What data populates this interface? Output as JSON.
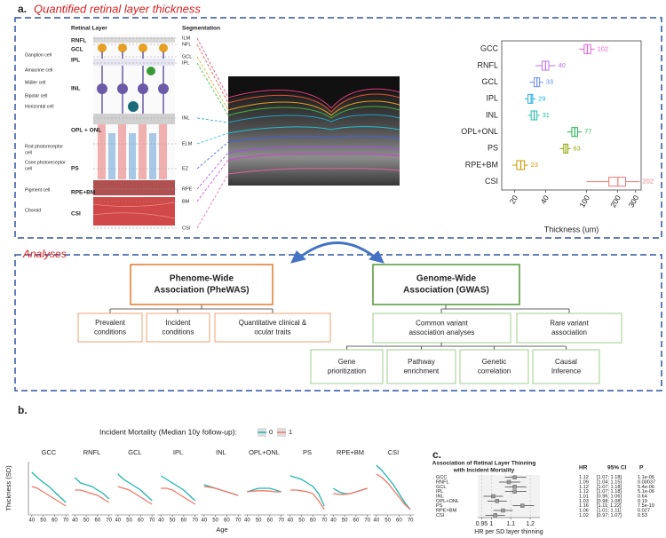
{
  "panel_a": {
    "label": "a.",
    "title": "Quantified retinal layer thickness",
    "diagram": {
      "layer_header": "Retinal Layer",
      "seg_header": "Segmentation",
      "layers": [
        "RNFL",
        "GCL",
        "IPL",
        "INL",
        "OPL + ONL",
        "PS",
        "RPE+BM",
        "CSI"
      ],
      "cells": [
        "Ganglion cell",
        "Amacrine cell",
        "Müller cell",
        "Bipolar cell",
        "Horizontal cell",
        "Rod photoreceptor",
        "cell",
        "Cone photoreceptor",
        "cell",
        "Pigment cell",
        "Choroid"
      ],
      "segmentation": [
        "ILM",
        "NFL",
        "GCL",
        "IPL",
        "INL",
        "ELM",
        "EZ",
        "RPE",
        "BM",
        "CSI"
      ]
    },
    "boxplot": {
      "type": "box",
      "categories": [
        "GCC",
        "RNFL",
        "GCL",
        "IPL",
        "INL",
        "OPL+ONL",
        "PS",
        "RPE+BM",
        "CSI"
      ],
      "median": [
        102,
        40,
        33,
        29,
        31,
        77,
        63,
        23,
        202
      ],
      "q1": [
        95,
        37,
        31,
        27,
        29,
        72,
        60,
        21,
        165
      ],
      "q3": [
        110,
        43,
        35,
        30,
        33,
        82,
        66,
        25,
        240
      ],
      "whisker_low": [
        85,
        32,
        28,
        25,
        27,
        65,
        55,
        19,
        100
      ],
      "whisker_high": [
        120,
        50,
        38,
        32,
        35,
        90,
        70,
        27,
        330
      ],
      "colors": [
        "#e060d8",
        "#c070f0",
        "#6b8cff",
        "#20b0e0",
        "#20c0a8",
        "#20b850",
        "#8fa800",
        "#c89b00",
        "#f07878"
      ],
      "xlim": [
        15,
        340
      ],
      "xticks": [
        20,
        40,
        100,
        200,
        300
      ],
      "log_x": true,
      "xlabel": "Thickness (um)"
    }
  },
  "analyses": {
    "title": "Analyses",
    "phewas": {
      "title_lines": [
        "Phenome-Wide",
        "Association (PheWAS)"
      ],
      "children": [
        [
          "Prevalent",
          "conditions"
        ],
        [
          "Incident",
          "conditions"
        ],
        [
          "Quantitative clinical &",
          "ocular traits"
        ]
      ]
    },
    "gwas": {
      "title_lines": [
        "Genome-Wide",
        "Association (GWAS)"
      ],
      "children": [
        [
          "Common variant",
          "association analyses"
        ],
        [
          "Rare variant",
          "association"
        ]
      ],
      "grandchildren": [
        [
          "Gene",
          "prioritization"
        ],
        [
          "Pathway",
          "enrichment"
        ],
        [
          "Genetic",
          "correlation"
        ],
        [
          "Causal",
          "Inference"
        ]
      ]
    }
  },
  "panel_b": {
    "label": "b.",
    "legend_title": "Incident Mortality (Median 10y follow-up):",
    "series": [
      {
        "name": "0",
        "color": "#20b5b0"
      },
      {
        "name": "1",
        "color": "#f07868"
      }
    ],
    "ages": [
      40,
      45,
      50,
      55,
      60,
      65,
      70
    ],
    "xlim": [
      37,
      73
    ],
    "xticks": [
      40,
      50,
      60,
      70
    ],
    "ylim": [
      -0.7,
      0.8
    ],
    "xlabel": "Age",
    "ylabel": "Thickness (SD)",
    "facets": [
      {
        "title": "GCC",
        "values": [
          [
            0.5,
            0.35,
            0.22,
            0.1,
            -0.05,
            -0.2,
            -0.35
          ],
          [
            0.1,
            0.05,
            -0.05,
            -0.15,
            -0.25,
            -0.35,
            -0.45
          ]
        ]
      },
      {
        "title": "RNFL",
        "values": [
          [
            0.35,
            0.2,
            0.15,
            0.1,
            0,
            -0.1,
            -0.25
          ],
          [
            0,
            0,
            -0.05,
            -0.1,
            -0.15,
            -0.25,
            -0.35
          ]
        ]
      },
      {
        "title": "GCL",
        "values": [
          [
            0.45,
            0.3,
            0.2,
            0.1,
            0,
            -0.15,
            -0.3
          ],
          [
            0.1,
            0.05,
            0,
            -0.1,
            -0.2,
            -0.3,
            -0.4
          ]
        ]
      },
      {
        "title": "IPL",
        "values": [
          [
            0.4,
            0.3,
            0.2,
            0.1,
            0,
            -0.15,
            -0.3
          ],
          [
            0.05,
            0.05,
            0,
            -0.1,
            -0.2,
            -0.3,
            -0.4
          ]
        ]
      },
      {
        "title": "INL",
        "values": [
          [
            0.15,
            0.1,
            0.05,
            0,
            -0.05,
            -0.1,
            -0.15
          ],
          [
            0.1,
            0.08,
            0.05,
            0,
            -0.05,
            -0.1,
            -0.15
          ]
        ]
      },
      {
        "title": "OPL+ONL",
        "values": [
          [
            -0.05,
            0,
            0.05,
            0.05,
            0.05,
            0,
            -0.05
          ],
          [
            -0.05,
            -0.03,
            -0.02,
            -0.02,
            -0.03,
            -0.05,
            -0.05
          ]
        ]
      },
      {
        "title": "PS",
        "values": [
          [
            0.4,
            0.35,
            0.3,
            0.2,
            0.1,
            -0.1,
            -0.45
          ],
          [
            0,
            0,
            -0.02,
            -0.05,
            -0.1,
            -0.3,
            -0.55
          ]
        ]
      },
      {
        "title": "RPE+BM",
        "values": [
          [
            0.05,
            -0.05,
            -0.1,
            -0.1,
            -0.05,
            0,
            0.05
          ],
          [
            -0.1,
            -0.12,
            -0.12,
            -0.1,
            -0.05,
            0,
            0.05
          ]
        ]
      },
      {
        "title": "CSI",
        "values": [
          [
            0.7,
            0.55,
            0.35,
            0.15,
            -0.1,
            -0.35,
            -0.55
          ],
          [
            0.45,
            0.35,
            0.2,
            0,
            -0.2,
            -0.4,
            -0.55
          ]
        ]
      }
    ]
  },
  "panel_c": {
    "label": "c.",
    "title_lines": [
      "Association of Retinal Layer Thinning",
      "with Incident Mortality"
    ],
    "headers": [
      "HR",
      "95% CI",
      "P"
    ],
    "rows": [
      {
        "layer": "GCC",
        "hr": 1.12,
        "ci_low": 1.07,
        "ci_high": 1.18,
        "ci_label": "[1.07; 1.18]",
        "p": "1.1e-06"
      },
      {
        "layer": "RNFL",
        "hr": 1.09,
        "ci_low": 1.04,
        "ci_high": 1.15,
        "ci_label": "[1.04; 1.15]",
        "p": "0.00037"
      },
      {
        "layer": "GCL",
        "hr": 1.12,
        "ci_low": 1.07,
        "ci_high": 1.18,
        "ci_label": "[1.07; 1.18]",
        "p": "5.4e-06"
      },
      {
        "layer": "IPL",
        "hr": 1.12,
        "ci_low": 1.07,
        "ci_high": 1.18,
        "ci_label": "[1.07; 1.18]",
        "p": "5.1e-06"
      },
      {
        "layer": "INL",
        "hr": 1.01,
        "ci_low": 0.96,
        "ci_high": 1.06,
        "ci_label": "[0.96; 1.06]",
        "p": "0.64"
      },
      {
        "layer": "OPL+ONL",
        "hr": 1.03,
        "ci_low": 0.98,
        "ci_high": 1.08,
        "ci_label": "[0.98; 1.08]",
        "p": "0.19"
      },
      {
        "layer": "PS",
        "hr": 1.16,
        "ci_low": 1.11,
        "ci_high": 1.22,
        "ci_label": "[1.11; 1.22]",
        "p": "7.5e-10"
      },
      {
        "layer": "RPE+BM",
        "hr": 1.06,
        "ci_low": 1.01,
        "ci_high": 1.11,
        "ci_label": "[1.01; 1.11]",
        "p": "0.027"
      },
      {
        "layer": "CSI",
        "hr": 1.02,
        "ci_low": 0.97,
        "ci_high": 1.07,
        "ci_label": "[0.97; 1.07]",
        "p": "0.53"
      }
    ],
    "xlim": [
      0.93,
      1.25
    ],
    "xticks": [
      0.95,
      1,
      1.1,
      1.2
    ],
    "xlabel": "HR per SD layer thinning"
  }
}
